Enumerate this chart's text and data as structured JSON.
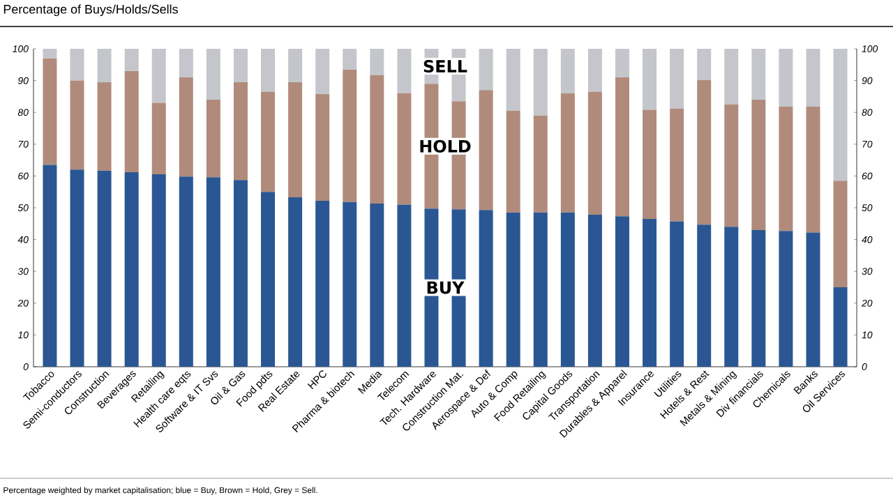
{
  "chart_data": {
    "type": "bar",
    "stacked": true,
    "title": "Percentage of Buys/Holds/Sells",
    "annotations": [
      "Percentage weighted by market capitalisation; blue = Buy, Brown = Hold, Grey = Sell."
    ],
    "categories": [
      "Tobacco",
      "Semi-conductors",
      "Construction",
      "Beverages",
      "Retailing",
      "Health care eqts",
      "Software & IT Svs",
      "Oil & Gas",
      "Food pdts",
      "Real Estate",
      "HPC",
      "Pharma & biotech",
      "Media",
      "Telecom",
      "Tech. Hardware",
      "Construction Mat.",
      "Aerospace & Def",
      "Auto & Comp",
      "Food Retailing",
      "Capital Goods",
      "Transportation",
      "Durables & Apparel",
      "Insurance",
      "Utilities",
      "Hotels & Rest",
      "Metals & Mining",
      "Div financials",
      "Chemicals",
      "Banks",
      "Oil Services"
    ],
    "series": [
      {
        "name": "BUY",
        "color": "#2a5793",
        "values": [
          63.5,
          62,
          61.7,
          61.2,
          60.5,
          59.8,
          59.6,
          58.7,
          55,
          53.3,
          52.2,
          51.8,
          51.3,
          51,
          49.7,
          49.5,
          49.3,
          48.5,
          48.5,
          48.5,
          47.8,
          47.3,
          46.5,
          45.7,
          44.7,
          44,
          43,
          42.7,
          42.2,
          25
        ]
      },
      {
        "name": "HOLD",
        "color": "#b08b7b",
        "values": [
          33.5,
          28,
          27.8,
          31.8,
          22.5,
          31.2,
          24.4,
          30.8,
          31.5,
          36.2,
          33.6,
          41.7,
          40.5,
          35,
          39.3,
          34,
          37.7,
          32,
          30.5,
          37.5,
          38.7,
          43.7,
          34.3,
          35.5,
          45.5,
          38.5,
          41,
          39.1,
          39.6,
          33.5
        ]
      },
      {
        "name": "SELL",
        "color": "#c4c6cc",
        "values": [
          3,
          10,
          10.5,
          7,
          17,
          9,
          16,
          10.5,
          13.5,
          10.5,
          14.2,
          6.5,
          8.2,
          14,
          11,
          16.5,
          13,
          19.5,
          21,
          14,
          13.5,
          9,
          19.2,
          18.8,
          9.8,
          17.5,
          16,
          18.2,
          18.2,
          41.5
        ]
      }
    ],
    "ylim": [
      0,
      100
    ],
    "yticks": [
      0,
      10,
      20,
      30,
      40,
      50,
      60,
      70,
      80,
      90,
      100
    ],
    "y2lim": [
      0,
      100
    ],
    "y2ticks": [
      0,
      10,
      20,
      30,
      40,
      50,
      60,
      70,
      80,
      90,
      100
    ]
  }
}
